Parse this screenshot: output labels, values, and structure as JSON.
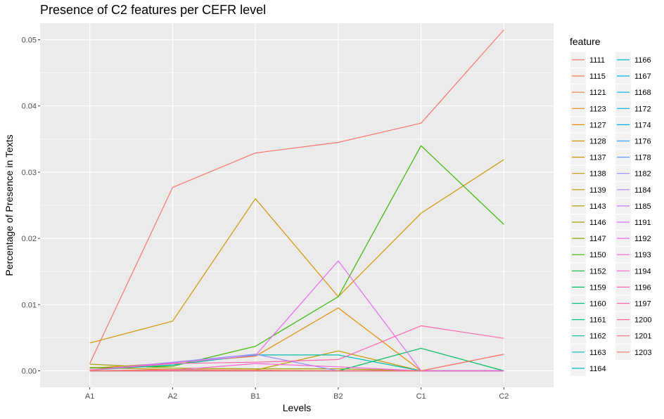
{
  "chart_data": {
    "type": "line",
    "title": "Presence of C2 features per CEFR level",
    "xlabel": "Levels",
    "ylabel": "Percentage of Presence in Texts",
    "categories": [
      "A1",
      "A2",
      "B1",
      "B2",
      "C1",
      "C2"
    ],
    "ylim": [
      -0.0025,
      0.0525
    ],
    "yticks": [
      0.0,
      0.01,
      0.02,
      0.03,
      0.04,
      0.05
    ],
    "ytick_labels": [
      "0.00",
      "0.01",
      "0.02",
      "0.03",
      "0.04",
      "0.05"
    ],
    "grid": true,
    "legend": {
      "title": "feature",
      "position": "right",
      "columns": 2
    },
    "series": [
      {
        "name": "1111",
        "color": "#F8766D",
        "values": [
          0.0011,
          0.0277,
          0.0329,
          0.0345,
          0.0374,
          0.0515
        ]
      },
      {
        "name": "1115",
        "color": "#F37B59",
        "values": [
          0,
          0,
          0,
          0,
          0,
          0
        ]
      },
      {
        "name": "1121",
        "color": "#ED8141",
        "values": [
          0,
          0,
          0,
          0,
          0,
          0
        ]
      },
      {
        "name": "1123",
        "color": "#E7861B",
        "values": [
          0,
          0,
          0,
          0,
          0,
          0
        ]
      },
      {
        "name": "1127",
        "color": "#DF8C00",
        "values": [
          0.0004,
          0.0012,
          0.0022,
          0.0095,
          0,
          0
        ]
      },
      {
        "name": "1128",
        "color": "#D89000",
        "values": [
          0,
          0,
          0,
          0,
          0,
          0
        ]
      },
      {
        "name": "1137",
        "color": "#CF9400",
        "values": [
          0.0042,
          0.0075,
          0.026,
          0.0112,
          0.0238,
          0.0319
        ]
      },
      {
        "name": "1138",
        "color": "#C59900",
        "values": [
          0.0005,
          0.0002,
          0.0001,
          0.003,
          0,
          0
        ]
      },
      {
        "name": "1139",
        "color": "#BB9D00",
        "values": [
          0,
          0,
          0,
          0,
          0,
          0
        ]
      },
      {
        "name": "1143",
        "color": "#AFA100",
        "values": [
          0,
          0,
          0,
          0,
          0,
          0
        ]
      },
      {
        "name": "1146",
        "color": "#A3A500",
        "values": [
          0.001,
          0.0004,
          0.0003,
          0.0003,
          0,
          0
        ]
      },
      {
        "name": "1147",
        "color": "#95A900",
        "values": [
          0,
          0,
          0,
          0,
          0,
          0
        ]
      },
      {
        "name": "1150",
        "color": "#39B600",
        "values": [
          0.0004,
          0.0007,
          0.0037,
          0.0112,
          0.034,
          0.0221
        ]
      },
      {
        "name": "1152",
        "color": "#00BA38",
        "values": [
          0,
          0,
          0,
          0,
          0,
          0
        ]
      },
      {
        "name": "1159",
        "color": "#00BC59",
        "values": [
          0,
          0,
          0,
          0,
          0.0034,
          0
        ]
      },
      {
        "name": "1160",
        "color": "#00BF74",
        "values": [
          0,
          0,
          0,
          0,
          0,
          0
        ]
      },
      {
        "name": "1161",
        "color": "#00C08B",
        "values": [
          0,
          0,
          0,
          0,
          0,
          0
        ]
      },
      {
        "name": "1162",
        "color": "#00C19F",
        "values": [
          0,
          0,
          0,
          0,
          0,
          0
        ]
      },
      {
        "name": "1163",
        "color": "#00C0B2",
        "values": [
          0.0001,
          0.0009,
          0.0024,
          0.0024,
          0,
          0
        ]
      },
      {
        "name": "1164",
        "color": "#00BFC4",
        "values": [
          0,
          0,
          0,
          0,
          0,
          0
        ]
      },
      {
        "name": "1166",
        "color": "#00BDD4",
        "values": [
          0,
          0,
          0,
          0,
          0,
          0
        ]
      },
      {
        "name": "1167",
        "color": "#00BAE1",
        "values": [
          0,
          0,
          0,
          0,
          0,
          0
        ]
      },
      {
        "name": "1168",
        "color": "#00B5EE",
        "values": [
          0,
          0,
          0,
          0,
          0,
          0
        ]
      },
      {
        "name": "1172",
        "color": "#00B0F6",
        "values": [
          0,
          0,
          0,
          0,
          0,
          0
        ]
      },
      {
        "name": "1174",
        "color": "#00A9FF",
        "values": [
          0,
          0,
          0,
          0,
          0,
          0
        ]
      },
      {
        "name": "1176",
        "color": "#35A2FF",
        "values": [
          0,
          0,
          0,
          0,
          0,
          0
        ]
      },
      {
        "name": "1178",
        "color": "#619CFF",
        "values": [
          0,
          0,
          0,
          0,
          0,
          0
        ]
      },
      {
        "name": "1182",
        "color": "#9590FF",
        "values": [
          0.0001,
          0.0013,
          0.0025,
          0,
          0,
          0
        ]
      },
      {
        "name": "1184",
        "color": "#AC88FF",
        "values": [
          0,
          0,
          0,
          0,
          0,
          0
        ]
      },
      {
        "name": "1185",
        "color": "#C77CFF",
        "values": [
          0,
          0,
          0,
          0,
          0,
          0
        ]
      },
      {
        "name": "1191",
        "color": "#DC71FA",
        "values": [
          0,
          0,
          0,
          0,
          0,
          0
        ]
      },
      {
        "name": "1192",
        "color": "#E76BF3",
        "values": [
          0.0001,
          0.0012,
          0.0023,
          0.0166,
          0,
          0
        ]
      },
      {
        "name": "1193",
        "color": "#F365E6",
        "values": [
          0,
          0,
          0,
          0,
          0,
          0
        ]
      },
      {
        "name": "1194",
        "color": "#FA62DB",
        "values": [
          0,
          0.0001,
          0.0011,
          0.0006,
          0,
          0
        ]
      },
      {
        "name": "1196",
        "color": "#FF62BC",
        "values": [
          0,
          0,
          0,
          0,
          0,
          0
        ]
      },
      {
        "name": "1197",
        "color": "#FF65AA",
        "values": [
          0.0001,
          0.0011,
          0.0013,
          0.0017,
          0.0068,
          0.0049
        ]
      },
      {
        "name": "1200",
        "color": "#FF6C91",
        "values": [
          0,
          0,
          0,
          0,
          0,
          0
        ]
      },
      {
        "name": "1201",
        "color": "#FC717F",
        "values": [
          0,
          0,
          0,
          0,
          0,
          0.0025
        ]
      },
      {
        "name": "1203",
        "color": "#F8766D",
        "values": [
          0,
          0.0002,
          0.0001,
          0,
          0,
          0.0025
        ]
      }
    ]
  }
}
